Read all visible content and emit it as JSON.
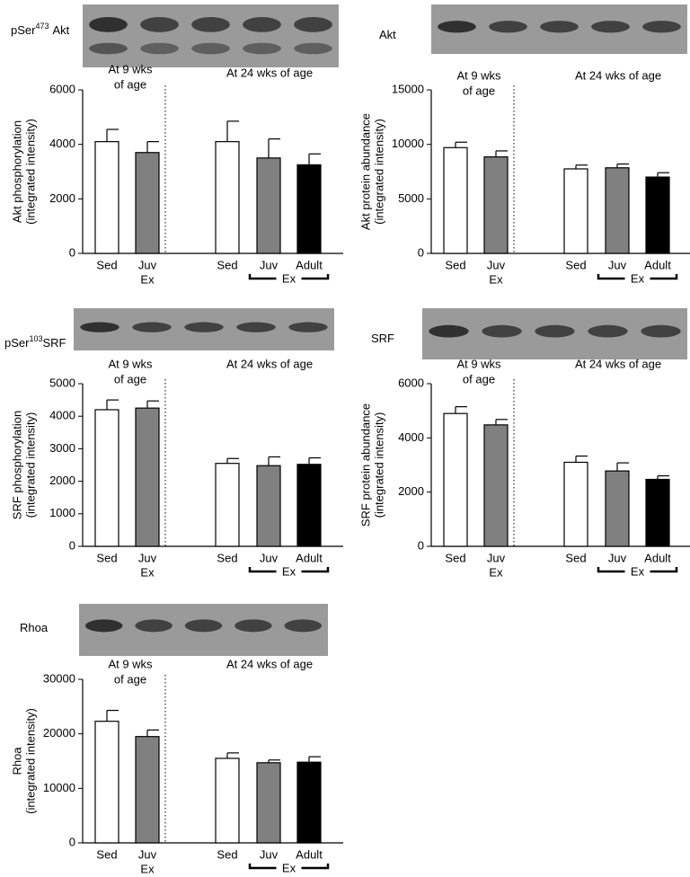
{
  "chart_data": [
    {
      "type": "bar",
      "blot_label": [
        "pSer",
        "473",
        "Akt"
      ],
      "ylabel": [
        "Akt phosphorylation",
        "(integrated intensity)"
      ],
      "group_labels": [
        [
          "At 9 wks",
          "of age"
        ],
        [
          "At 24 wks of age"
        ]
      ],
      "categories": [
        "Sed",
        "Juv",
        "Sed",
        "Juv",
        "Adult"
      ],
      "ex_labels": [
        "Ex",
        "Ex"
      ],
      "values": [
        4100,
        3700,
        4100,
        3500,
        3250
      ],
      "errors": [
        450,
        400,
        750,
        700,
        400
      ],
      "colors": [
        "#ffffff",
        "#808080",
        "#ffffff",
        "#808080",
        "#000000"
      ],
      "ylim": [
        0,
        6000
      ],
      "yticks": [
        0,
        2000,
        4000,
        6000
      ]
    },
    {
      "type": "bar",
      "blot_label": [
        "Akt"
      ],
      "ylabel": [
        "Akt protein abundance",
        "(integrated intensity)"
      ],
      "group_labels": [
        [
          "At 9 wks",
          "of age"
        ],
        [
          "At 24 wks of age"
        ]
      ],
      "categories": [
        "Sed",
        "Juv",
        "Sed",
        "Juv",
        "Adult"
      ],
      "ex_labels": [
        "Ex",
        "Ex"
      ],
      "values": [
        9700,
        8850,
        7750,
        7850,
        7000
      ],
      "errors": [
        500,
        550,
        350,
        350,
        400
      ],
      "colors": [
        "#ffffff",
        "#808080",
        "#ffffff",
        "#808080",
        "#000000"
      ],
      "ylim": [
        0,
        15000
      ],
      "yticks": [
        0,
        5000,
        10000,
        15000
      ]
    },
    {
      "type": "bar",
      "blot_label": [
        "pSer",
        "103",
        "SRF"
      ],
      "ylabel": [
        "SRF phosphorylation",
        "(integrated intensity)"
      ],
      "group_labels": [
        [
          "At 9 wks",
          "of age"
        ],
        [
          "At 24 wks of age"
        ]
      ],
      "categories": [
        "Sed",
        "Juv",
        "Sed",
        "Juv",
        "Adult"
      ],
      "ex_labels": [
        "Ex",
        "Ex"
      ],
      "values": [
        4200,
        4250,
        2550,
        2480,
        2520
      ],
      "errors": [
        300,
        220,
        150,
        270,
        200
      ],
      "colors": [
        "#ffffff",
        "#808080",
        "#ffffff",
        "#808080",
        "#000000"
      ],
      "ylim": [
        0,
        5000
      ],
      "yticks": [
        0,
        1000,
        2000,
        3000,
        4000,
        5000
      ]
    },
    {
      "type": "bar",
      "blot_label": [
        "SRF"
      ],
      "ylabel": [
        "SRF protein abundance",
        "(integrated intensity)"
      ],
      "group_labels": [
        [
          "At 9 wks",
          "of age"
        ],
        [
          "At 24 wks of age"
        ]
      ],
      "categories": [
        "Sed",
        "Juv",
        "Sed",
        "Juv",
        "Adult"
      ],
      "ex_labels": [
        "Ex",
        "Ex"
      ],
      "values": [
        4900,
        4480,
        3100,
        2780,
        2470
      ],
      "errors": [
        250,
        200,
        230,
        300,
        130
      ],
      "colors": [
        "#ffffff",
        "#808080",
        "#ffffff",
        "#808080",
        "#000000"
      ],
      "ylim": [
        0,
        6000
      ],
      "yticks": [
        0,
        2000,
        4000,
        6000
      ]
    },
    {
      "type": "bar",
      "blot_label": [
        "Rhoa"
      ],
      "ylabel": [
        "Rhoa",
        "(integrated intensity)"
      ],
      "group_labels": [
        [
          "At 9 wks",
          "of age"
        ],
        [
          "At 24 wks of age"
        ]
      ],
      "categories": [
        "Sed",
        "Juv",
        "Sed",
        "Juv",
        "Adult"
      ],
      "ex_labels": [
        "Ex",
        "Ex"
      ],
      "values": [
        22300,
        19500,
        15500,
        14700,
        14800
      ],
      "errors": [
        2000,
        1200,
        1000,
        500,
        1000
      ],
      "colors": [
        "#ffffff",
        "#808080",
        "#ffffff",
        "#808080",
        "#000000"
      ],
      "ylim": [
        0,
        30000
      ],
      "yticks": [
        0,
        10000,
        20000,
        30000
      ]
    }
  ]
}
